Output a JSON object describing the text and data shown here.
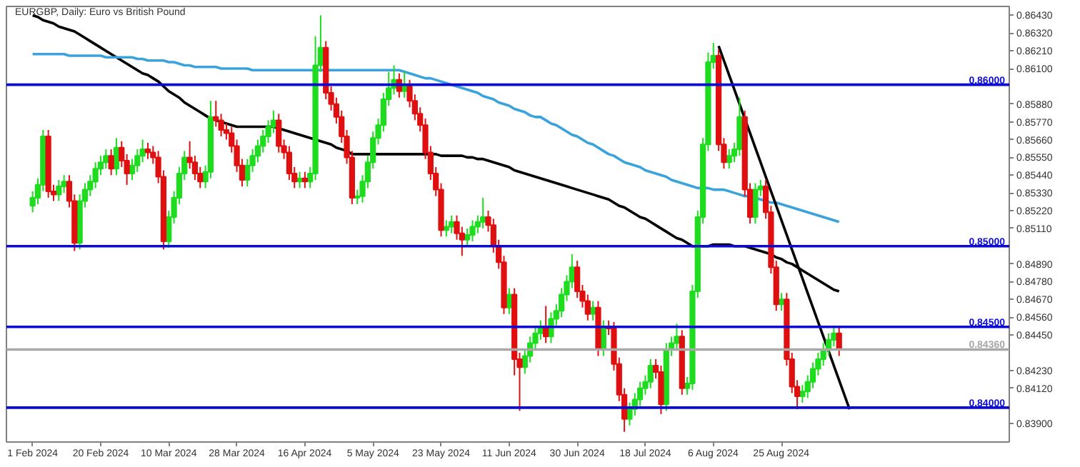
{
  "chart_data": {
    "type": "candlestick",
    "title": "EURGBP, Daily: Euro vs British Pound",
    "categories": [
      "1 Feb 2024",
      null,
      null,
      null,
      null,
      null,
      null,
      null,
      null,
      null,
      null,
      null,
      null,
      "20 Feb 2024",
      null,
      null,
      null,
      null,
      null,
      null,
      null,
      null,
      null,
      null,
      null,
      null,
      "10 Mar 2024",
      null,
      null,
      null,
      null,
      null,
      null,
      null,
      null,
      null,
      null,
      null,
      null,
      "28 Mar 2024",
      null,
      null,
      null,
      null,
      null,
      null,
      null,
      null,
      null,
      null,
      null,
      null,
      "16 Apr 2024",
      null,
      null,
      null,
      null,
      null,
      null,
      null,
      null,
      null,
      null,
      null,
      null,
      "5 May 2024",
      null,
      null,
      null,
      null,
      null,
      null,
      null,
      null,
      null,
      null,
      null,
      null,
      "23 May 2024",
      null,
      null,
      null,
      null,
      null,
      null,
      null,
      null,
      null,
      null,
      null,
      null,
      "11 Jun 2024",
      null,
      null,
      null,
      null,
      null,
      null,
      null,
      null,
      null,
      null,
      null,
      null,
      "30 Jun 2024",
      null,
      null,
      null,
      null,
      null,
      null,
      null,
      null,
      null,
      null,
      null,
      null,
      "18 Jul 2024",
      null,
      null,
      null,
      null,
      null,
      null,
      null,
      null,
      null,
      null,
      null,
      null,
      "6 Aug 2024",
      null,
      null,
      null,
      null,
      null,
      null,
      null,
      null,
      null,
      null,
      null,
      null,
      "25 Aug 2024",
      null,
      null,
      null,
      null,
      null,
      null,
      null,
      null,
      null,
      null,
      null,
      null,
      null,
      null,
      null,
      null,
      null,
      null,
      null,
      null,
      null,
      null,
      null,
      null,
      null,
      null,
      null,
      null,
      null,
      null,
      null,
      null,
      null,
      null,
      null,
      null,
      null,
      null,
      null,
      null,
      null,
      null,
      null
    ],
    "ylim": [
      0.83787,
      0.86485
    ],
    "yticks": [
      {
        "value": 0.8643,
        "label": "0.86430"
      },
      {
        "value": 0.8632,
        "label": "0.86320"
      },
      {
        "value": 0.8621,
        "label": "0.86210"
      },
      {
        "value": 0.861,
        "label": "0.86100"
      },
      {
        "value": 0.8588,
        "label": "0.85880"
      },
      {
        "value": 0.8577,
        "label": "0.85770"
      },
      {
        "value": 0.8566,
        "label": "0.85660"
      },
      {
        "value": 0.8555,
        "label": "0.85550"
      },
      {
        "value": 0.8544,
        "label": "0.85440"
      },
      {
        "value": 0.8533,
        "label": "0.85330"
      },
      {
        "value": 0.8522,
        "label": "0.85220"
      },
      {
        "value": 0.8511,
        "label": "0.85110"
      },
      {
        "value": 0.8489,
        "label": "0.84890"
      },
      {
        "value": 0.8478,
        "label": "0.84780"
      },
      {
        "value": 0.8467,
        "label": "0.84670"
      },
      {
        "value": 0.8456,
        "label": "0.84560"
      },
      {
        "value": 0.8445,
        "label": "0.84450"
      },
      {
        "value": 0.8423,
        "label": "0.84230"
      },
      {
        "value": 0.8412,
        "label": "0.84120"
      },
      {
        "value": 0.839,
        "label": "0.83900"
      }
    ],
    "ref_lines": [
      {
        "axis": "y",
        "value": 0.86,
        "label": "0.86000",
        "color": "#0a0ad8"
      },
      {
        "axis": "y",
        "value": 0.85,
        "label": "0.85000",
        "color": "#0a0ad8"
      },
      {
        "axis": "y",
        "value": 0.845,
        "label": "0.84500",
        "color": "#0a0ad8"
      },
      {
        "axis": "y",
        "value": 0.84,
        "label": "0.84000",
        "color": "#0a0ad8"
      },
      {
        "axis": "y",
        "value": 0.8436,
        "label": "0.84360",
        "color": "#a8a8a8"
      }
    ],
    "series": [
      {
        "type": "line",
        "color": "#000000",
        "values": [
          0.8643,
          0.8642,
          0.864,
          0.8639,
          0.8638,
          0.8636,
          0.8635,
          0.8634,
          0.8633,
          0.8631,
          0.8629,
          0.8627,
          0.8625,
          0.8623,
          0.8621,
          0.8619,
          0.8617,
          0.8615,
          0.8613,
          0.8611,
          0.8609,
          0.8607,
          0.8606,
          0.8604,
          0.8602,
          0.8599,
          0.8596,
          0.8594,
          0.8592,
          0.8589,
          0.8587,
          0.8585,
          0.8583,
          0.8581,
          0.8579,
          0.8578,
          0.8577,
          0.8576,
          0.8575,
          0.8574,
          0.8574,
          0.8574,
          0.8574,
          0.8574,
          0.8574,
          0.8574,
          0.8574,
          0.8573,
          0.8572,
          0.8571,
          0.857,
          0.8569,
          0.8568,
          0.8567,
          0.8566,
          0.8565,
          0.8564,
          0.8563,
          0.8561,
          0.856,
          0.8559,
          0.8557,
          0.8557,
          0.8557,
          0.8557,
          0.8557,
          0.8557,
          0.8557,
          0.8557,
          0.8557,
          0.8557,
          0.8557,
          0.8557,
          0.8557,
          0.8557,
          0.8557,
          0.8557,
          0.8557,
          0.8556,
          0.8556,
          0.8556,
          0.8556,
          0.8556,
          0.8555,
          0.8555,
          0.8554,
          0.8554,
          0.8553,
          0.8552,
          0.8551,
          0.855,
          0.8549,
          0.8547,
          0.8546,
          0.8545,
          0.8544,
          0.8543,
          0.8542,
          0.8541,
          0.854,
          0.8539,
          0.8538,
          0.8537,
          0.8536,
          0.8535,
          0.8534,
          0.8533,
          0.8532,
          0.8531,
          0.853,
          0.8529,
          0.8527,
          0.8525,
          0.8524,
          0.8522,
          0.852,
          0.8518,
          0.8517,
          0.8515,
          0.8513,
          0.8511,
          0.8509,
          0.8507,
          0.8505,
          0.8504,
          0.8502,
          0.85,
          0.85,
          0.85,
          0.85,
          0.8501,
          0.8501,
          0.8501,
          0.8501,
          0.85,
          0.85,
          0.85,
          0.8499,
          0.8498,
          0.8497,
          0.8496,
          0.8495,
          0.8493,
          0.8492,
          0.849,
          0.8489,
          0.8487,
          0.8485,
          0.8483,
          0.8481,
          0.8479,
          0.8477,
          0.8475,
          0.8473,
          0.8472,
          null,
          null,
          null,
          null,
          null,
          null,
          null,
          null,
          null,
          null,
          null,
          null,
          null,
          null,
          null,
          null,
          null,
          null,
          null,
          null,
          null,
          null,
          null,
          null,
          null,
          null,
          null,
          null,
          null,
          null,
          null,
          null
        ]
      },
      {
        "type": "line",
        "color": "#3aa3dc",
        "values": [
          0.8619,
          0.8619,
          0.8619,
          0.8619,
          0.8619,
          0.8619,
          0.8619,
          0.8618,
          0.8618,
          0.8618,
          0.8618,
          0.8618,
          0.8618,
          0.8618,
          0.8617,
          0.8617,
          0.8617,
          0.8617,
          0.8617,
          0.8617,
          0.8616,
          0.8616,
          0.8615,
          0.8615,
          0.8615,
          0.8615,
          0.8614,
          0.8614,
          0.8613,
          0.8612,
          0.8612,
          0.8611,
          0.8611,
          0.8611,
          0.8611,
          0.8611,
          0.861,
          0.861,
          0.861,
          0.861,
          0.861,
          0.861,
          0.8609,
          0.8609,
          0.8609,
          0.8609,
          0.8609,
          0.8609,
          0.8609,
          0.8609,
          0.8609,
          0.8609,
          0.8609,
          0.8609,
          0.8609,
          0.8609,
          0.8609,
          0.8609,
          0.8609,
          0.8609,
          0.8609,
          0.8609,
          0.8609,
          0.8609,
          0.8609,
          0.8609,
          0.8609,
          0.8609,
          0.8609,
          0.8609,
          0.8609,
          0.8608,
          0.8607,
          0.8606,
          0.8605,
          0.8604,
          0.8604,
          0.8603,
          0.8602,
          0.8601,
          0.86,
          0.8599,
          0.8598,
          0.8597,
          0.8596,
          0.8595,
          0.8593,
          0.8592,
          0.8591,
          0.8589,
          0.8588,
          0.8587,
          0.8585,
          0.8584,
          0.8583,
          0.8581,
          0.858,
          0.858,
          0.8578,
          0.8576,
          0.8575,
          0.8573,
          0.8571,
          0.8569,
          0.8568,
          0.8566,
          0.8564,
          0.8563,
          0.8561,
          0.8559,
          0.8557,
          0.8556,
          0.8554,
          0.8552,
          0.8551,
          0.855,
          0.8549,
          0.8547,
          0.8546,
          0.8545,
          0.8544,
          0.8543,
          0.8541,
          0.854,
          0.8539,
          0.8538,
          0.8537,
          0.8536,
          0.8536,
          0.8536,
          0.8535,
          0.8535,
          0.8535,
          0.8534,
          0.8533,
          0.8532,
          0.8531,
          0.8531,
          0.853,
          0.8529,
          0.8528,
          0.8527,
          0.8527,
          0.8526,
          0.8525,
          0.8524,
          0.8523,
          0.8522,
          0.8521,
          0.852,
          0.8519,
          0.8518,
          0.8517,
          0.8516,
          0.8515,
          null,
          null,
          null,
          null,
          null,
          null,
          null,
          null,
          null,
          null,
          null,
          null,
          null,
          null,
          null,
          null,
          null,
          null,
          null,
          null,
          null,
          null,
          null,
          null,
          null,
          null,
          null,
          null,
          null,
          null,
          null,
          null
        ]
      },
      {
        "type": "line",
        "color": "#000000",
        "values": [
          null,
          null,
          null,
          null,
          null,
          null,
          null,
          null,
          null,
          null,
          null,
          null,
          null,
          null,
          null,
          null,
          null,
          null,
          null,
          null,
          null,
          null,
          null,
          null,
          null,
          null,
          null,
          null,
          null,
          null,
          null,
          null,
          null,
          null,
          null,
          null,
          null,
          null,
          null,
          null,
          null,
          null,
          null,
          null,
          null,
          null,
          null,
          null,
          null,
          null,
          null,
          null,
          null,
          null,
          null,
          null,
          null,
          null,
          null,
          null,
          null,
          null,
          null,
          null,
          null,
          null,
          null,
          null,
          null,
          null,
          null,
          null,
          null,
          null,
          null,
          null,
          null,
          null,
          null,
          null,
          null,
          null,
          null,
          null,
          null,
          null,
          null,
          null,
          null,
          null,
          null,
          null,
          null,
          null,
          null,
          null,
          null,
          null,
          null,
          null,
          null,
          null,
          null,
          null,
          null,
          null,
          null,
          null,
          null,
          null,
          null,
          null,
          null,
          null,
          null,
          null,
          null,
          null,
          null,
          null,
          null,
          null,
          null,
          null,
          null,
          null,
          null,
          null,
          null,
          null,
          null,
          0.8624,
          0.8615,
          0.8606,
          0.8597,
          0.8588,
          0.8579,
          0.857,
          0.8561,
          0.8552,
          0.8543,
          0.8534,
          0.8525,
          0.8516,
          0.8507,
          0.8498,
          0.8489,
          0.848,
          0.8471,
          0.8462,
          0.8453,
          0.8444,
          0.8435,
          0.8426,
          0.8417,
          0.8408,
          0.8399,
          null,
          null,
          null,
          null,
          null,
          null,
          null,
          null,
          null,
          null,
          null,
          null,
          null,
          null,
          null,
          null,
          null,
          null,
          null,
          null,
          null,
          null,
          null,
          null,
          null,
          null,
          null,
          null,
          null,
          null
        ]
      },
      {
        "color": "#1edc1e",
        "ohlc": [
          [
            0.8525,
            0.8534,
            0.8521,
            0.853
          ],
          [
            0.853,
            0.8542,
            0.8526,
            0.8538
          ],
          [
            0.8538,
            0.8572,
            0.8534,
            0.8568
          ],
          null,
          null,
          [
            0.8532,
            0.8541,
            0.8528,
            0.8537
          ],
          [
            0.8537,
            0.8544,
            0.8533,
            0.854
          ],
          null,
          null,
          [
            0.8502,
            0.8532,
            0.8498,
            0.8528
          ],
          [
            0.8528,
            0.8539,
            0.8524,
            0.8535
          ],
          [
            0.8535,
            0.8544,
            0.8531,
            0.854
          ],
          [
            0.854,
            0.8552,
            0.8536,
            0.8548
          ],
          [
            0.8548,
            0.8556,
            0.8544,
            0.8552
          ],
          [
            0.8552,
            0.856,
            0.8548,
            0.8556
          ],
          null,
          [
            0.8548,
            0.8567,
            0.8544,
            0.8561
          ],
          null,
          null,
          [
            0.8545,
            0.8554,
            0.8541,
            0.855
          ],
          [
            0.855,
            0.856,
            0.8546,
            0.8556
          ],
          [
            0.8556,
            0.8566,
            0.8552,
            0.856
          ],
          null,
          null,
          null,
          null,
          [
            0.8503,
            0.8522,
            0.8499,
            0.8518
          ],
          [
            0.8518,
            0.8534,
            0.8514,
            0.853
          ],
          [
            0.853,
            0.8549,
            0.8526,
            0.8545
          ],
          [
            0.8545,
            0.8559,
            0.8541,
            0.8555
          ],
          null,
          null,
          null,
          [
            0.854,
            0.855,
            0.8536,
            0.8546
          ],
          [
            0.8546,
            0.859,
            0.8542,
            0.858
          ],
          null,
          null,
          null,
          null,
          null,
          null,
          [
            0.8541,
            0.8554,
            0.8537,
            0.855
          ],
          [
            0.855,
            0.856,
            0.8546,
            0.8556
          ],
          [
            0.8556,
            0.8566,
            0.8552,
            0.8562
          ],
          [
            0.8562,
            0.8572,
            0.8558,
            0.8568
          ],
          [
            0.8568,
            0.8578,
            0.8564,
            0.8574
          ],
          [
            0.8574,
            0.8584,
            0.857,
            0.8578
          ],
          null,
          null,
          null,
          null,
          [
            0.854,
            0.8546,
            0.8536,
            0.8542
          ],
          null,
          [
            0.854,
            0.8549,
            0.8536,
            0.8545
          ],
          [
            0.8545,
            0.863,
            0.8541,
            0.8612
          ],
          [
            0.8612,
            0.8643,
            0.8608,
            0.8623
          ],
          null,
          null,
          null,
          null,
          null,
          null,
          [
            0.853,
            0.8535,
            0.8526,
            0.8531
          ],
          [
            0.8531,
            0.8544,
            0.8527,
            0.854
          ],
          [
            0.854,
            0.8556,
            0.8536,
            0.8552
          ],
          [
            0.8552,
            0.8571,
            0.8548,
            0.8567
          ],
          [
            0.8567,
            0.8579,
            0.8563,
            0.8575
          ],
          [
            0.8575,
            0.8595,
            0.8571,
            0.8591
          ],
          [
            0.8591,
            0.8608,
            0.8587,
            0.8598
          ],
          [
            0.8598,
            0.8612,
            0.8594,
            0.8603
          ],
          null,
          [
            0.8596,
            0.8608,
            0.8592,
            0.8599
          ],
          null,
          null,
          null,
          null,
          null,
          null,
          null,
          [
            0.851,
            0.8516,
            0.8506,
            0.8512
          ],
          [
            0.8512,
            0.8519,
            0.8508,
            0.8515
          ],
          null,
          null,
          [
            0.8504,
            0.8511,
            0.85,
            0.8507
          ],
          [
            0.8507,
            0.8516,
            0.8503,
            0.8512
          ],
          [
            0.8512,
            0.8519,
            0.8508,
            0.8515
          ],
          [
            0.8515,
            0.853,
            0.8511,
            0.8518
          ],
          null,
          null,
          null,
          null,
          [
            0.8462,
            0.8474,
            0.8458,
            0.847
          ],
          null,
          null,
          [
            0.8425,
            0.8436,
            0.8421,
            0.8432
          ],
          [
            0.8432,
            0.8444,
            0.8428,
            0.844
          ],
          [
            0.844,
            0.845,
            0.8436,
            0.8446
          ],
          [
            0.8446,
            0.8454,
            0.8442,
            0.845
          ],
          null,
          [
            0.8444,
            0.8459,
            0.844,
            0.8455
          ],
          [
            0.8455,
            0.8464,
            0.8451,
            0.846
          ],
          [
            0.846,
            0.8474,
            0.8456,
            0.847
          ],
          [
            0.847,
            0.8482,
            0.8466,
            0.8478
          ],
          [
            0.8478,
            0.8495,
            0.8474,
            0.8487
          ],
          null,
          null,
          null,
          [
            0.8458,
            0.8466,
            0.8454,
            0.8462
          ],
          null,
          [
            0.8436,
            0.8454,
            0.8432,
            0.845
          ],
          null,
          null,
          null,
          null,
          [
            0.8393,
            0.8403,
            0.8389,
            0.8399
          ],
          [
            0.8399,
            0.8409,
            0.8395,
            0.8405
          ],
          [
            0.8405,
            0.8416,
            0.8401,
            0.8412
          ],
          [
            0.8412,
            0.842,
            0.8408,
            0.8416
          ],
          [
            0.8416,
            0.843,
            0.8412,
            0.8426
          ],
          null,
          null,
          [
            0.8402,
            0.844,
            0.8398,
            0.8436
          ],
          [
            0.8436,
            0.8444,
            0.8432,
            0.844
          ],
          [
            0.844,
            0.8452,
            0.8436,
            0.8444
          ],
          null,
          [
            0.8412,
            0.8419,
            0.8408,
            0.8415
          ],
          [
            0.8415,
            0.8476,
            0.8411,
            0.8472
          ],
          [
            0.8472,
            0.8522,
            0.8468,
            0.8518
          ],
          [
            0.8518,
            0.8567,
            0.8514,
            0.8563
          ],
          [
            0.8563,
            0.862,
            0.8559,
            0.8614
          ],
          [
            0.8614,
            0.8626,
            0.861,
            0.8618
          ],
          null,
          null,
          [
            0.8552,
            0.856,
            0.8548,
            0.8556
          ],
          [
            0.8556,
            0.8564,
            0.8552,
            0.856
          ],
          [
            0.856,
            0.8592,
            0.8556,
            0.858
          ],
          null,
          null,
          [
            0.8518,
            0.8539,
            0.8514,
            0.8535
          ],
          [
            0.8535,
            0.8541,
            0.8531,
            0.8537
          ],
          null,
          null,
          null,
          [
            0.8464,
            0.8471,
            0.846,
            0.8467
          ],
          null,
          null,
          null,
          [
            0.8407,
            0.8414,
            0.8403,
            0.841
          ],
          [
            0.841,
            0.842,
            0.8406,
            0.8416
          ],
          [
            0.8416,
            0.8428,
            0.8412,
            0.8424
          ],
          [
            0.8424,
            0.8434,
            0.842,
            0.843
          ],
          [
            0.843,
            0.844,
            0.8426,
            0.8436
          ],
          [
            0.8436,
            0.8446,
            0.8432,
            0.8442
          ],
          [
            0.8442,
            0.845,
            0.8438,
            0.8446
          ],
          null,
          null,
          null,
          null,
          null,
          null,
          null,
          null,
          null,
          null,
          null,
          null,
          null,
          null,
          null,
          null,
          null,
          null,
          null,
          null,
          null,
          null,
          null,
          null,
          null,
          null,
          null,
          null,
          null,
          null,
          null,
          null,
          null
        ]
      },
      {
        "color": "#e01010",
        "ohlc": [
          null,
          null,
          null,
          [
            0.8568,
            0.8572,
            0.853,
            0.8534
          ],
          [
            0.8534,
            0.8538,
            0.8528,
            0.8532
          ],
          null,
          null,
          [
            0.854,
            0.8544,
            0.8524,
            0.8528
          ],
          [
            0.8528,
            0.8532,
            0.8497,
            0.8502
          ],
          null,
          null,
          null,
          null,
          null,
          null,
          [
            0.8556,
            0.856,
            0.8544,
            0.8548
          ],
          null,
          [
            0.8561,
            0.8565,
            0.8549,
            0.8553
          ],
          [
            0.8553,
            0.8557,
            0.8538,
            0.8545
          ],
          null,
          null,
          null,
          [
            0.856,
            0.8564,
            0.8554,
            0.8558
          ],
          [
            0.8558,
            0.8562,
            0.8551,
            0.8555
          ],
          [
            0.8555,
            0.8559,
            0.8539,
            0.8543
          ],
          [
            0.8543,
            0.8547,
            0.8498,
            0.8503
          ],
          null,
          null,
          null,
          null,
          [
            0.8555,
            0.8565,
            0.8548,
            0.8552
          ],
          [
            0.8552,
            0.8556,
            0.8541,
            0.8545
          ],
          [
            0.8545,
            0.8549,
            0.8536,
            0.854
          ],
          null,
          null,
          [
            0.858,
            0.859,
            0.8574,
            0.8578
          ],
          [
            0.8578,
            0.8582,
            0.8568,
            0.8572
          ],
          [
            0.8572,
            0.8576,
            0.8566,
            0.857
          ],
          [
            0.857,
            0.8574,
            0.8558,
            0.8562
          ],
          [
            0.8562,
            0.8566,
            0.8546,
            0.855
          ],
          [
            0.855,
            0.8554,
            0.8537,
            0.8541
          ],
          null,
          null,
          null,
          null,
          null,
          null,
          [
            0.8578,
            0.8582,
            0.8558,
            0.8562
          ],
          [
            0.8562,
            0.8566,
            0.8554,
            0.8558
          ],
          [
            0.8558,
            0.8562,
            0.8541,
            0.8545
          ],
          [
            0.8545,
            0.8549,
            0.8536,
            0.854
          ],
          null,
          [
            0.8542,
            0.8546,
            0.8536,
            0.854
          ],
          null,
          null,
          null,
          [
            0.8623,
            0.8627,
            0.8591,
            0.8595
          ],
          [
            0.8595,
            0.8599,
            0.8584,
            0.8588
          ],
          [
            0.8588,
            0.8592,
            0.8576,
            0.858
          ],
          [
            0.858,
            0.8584,
            0.8564,
            0.8568
          ],
          [
            0.8568,
            0.8572,
            0.8551,
            0.8555
          ],
          [
            0.8555,
            0.8559,
            0.8526,
            0.853
          ],
          null,
          null,
          null,
          null,
          null,
          null,
          null,
          null,
          [
            0.8603,
            0.8607,
            0.8592,
            0.8596
          ],
          null,
          [
            0.8599,
            0.8603,
            0.8586,
            0.859
          ],
          [
            0.859,
            0.8594,
            0.8578,
            0.8582
          ],
          [
            0.8582,
            0.8586,
            0.8571,
            0.8575
          ],
          [
            0.8575,
            0.8579,
            0.8554,
            0.8558
          ],
          [
            0.8558,
            0.8562,
            0.8541,
            0.8545
          ],
          [
            0.8545,
            0.8549,
            0.8531,
            0.8535
          ],
          [
            0.8535,
            0.8539,
            0.8506,
            0.851
          ],
          null,
          null,
          [
            0.8515,
            0.8519,
            0.8504,
            0.8508
          ],
          [
            0.8508,
            0.8512,
            0.8494,
            0.8504
          ],
          null,
          null,
          null,
          null,
          [
            0.8518,
            0.8522,
            0.8509,
            0.8513
          ],
          [
            0.8513,
            0.8517,
            0.8496,
            0.85
          ],
          [
            0.85,
            0.8504,
            0.8486,
            0.849
          ],
          [
            0.849,
            0.8494,
            0.8458,
            0.8462
          ],
          null,
          [
            0.847,
            0.8474,
            0.842,
            0.843
          ],
          [
            0.843,
            0.8434,
            0.8398,
            0.8425
          ],
          null,
          null,
          null,
          null,
          [
            0.845,
            0.8463,
            0.844,
            0.8444
          ],
          null,
          null,
          null,
          null,
          null,
          [
            0.8487,
            0.8491,
            0.8468,
            0.8472
          ],
          [
            0.8472,
            0.8476,
            0.8462,
            0.8466
          ],
          [
            0.8466,
            0.847,
            0.8454,
            0.8458
          ],
          null,
          [
            0.8462,
            0.8466,
            0.8432,
            0.8436
          ],
          null,
          [
            0.845,
            0.8454,
            0.8445,
            0.8449
          ],
          [
            0.8449,
            0.8453,
            0.8423,
            0.8427
          ],
          [
            0.8427,
            0.8431,
            0.8404,
            0.8408
          ],
          [
            0.8408,
            0.8412,
            0.8385,
            0.8393
          ],
          null,
          null,
          null,
          null,
          null,
          [
            0.8426,
            0.843,
            0.8418,
            0.8422
          ],
          [
            0.8422,
            0.8426,
            0.8396,
            0.8402
          ],
          null,
          null,
          null,
          [
            0.8444,
            0.8448,
            0.8408,
            0.8412
          ],
          null,
          null,
          null,
          null,
          null,
          null,
          [
            0.8618,
            0.8622,
            0.8559,
            0.8563
          ],
          [
            0.8563,
            0.8567,
            0.8548,
            0.8552
          ],
          null,
          null,
          null,
          [
            0.858,
            0.8584,
            0.8531,
            0.8535
          ],
          [
            0.8535,
            0.8539,
            0.8514,
            0.8518
          ],
          null,
          null,
          [
            0.8537,
            0.8541,
            0.8517,
            0.8521
          ],
          [
            0.8521,
            0.8525,
            0.8483,
            0.8487
          ],
          [
            0.8487,
            0.8491,
            0.846,
            0.8464
          ],
          null,
          [
            0.8467,
            0.8471,
            0.8426,
            0.843
          ],
          [
            0.843,
            0.8434,
            0.8409,
            0.8413
          ],
          [
            0.8413,
            0.8417,
            0.8399,
            0.8407
          ],
          null,
          null,
          null,
          null,
          null,
          null,
          null,
          [
            0.8446,
            0.845,
            0.8432,
            0.8436
          ],
          null,
          null,
          null,
          null,
          null,
          null,
          null,
          null,
          null,
          null,
          null,
          null,
          null,
          null,
          null,
          null,
          null,
          null,
          null,
          null,
          null,
          null,
          null,
          null,
          null,
          null,
          null,
          null,
          null,
          null,
          null,
          null
        ]
      }
    ]
  }
}
